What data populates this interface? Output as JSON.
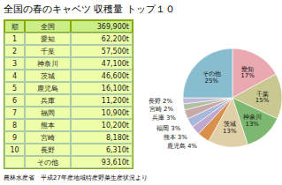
{
  "chart_data": {
    "type": "pie",
    "title": "全国の春のキャベツ  収穫量  トップ１０",
    "categories": [
      "愛知",
      "千葉",
      "神奈川",
      "茨城",
      "鹿児島",
      "熊本",
      "福岡",
      "兵庫",
      "宮崎",
      "長野",
      "その他"
    ],
    "values": [
      17,
      15,
      13,
      13,
      4,
      3,
      3,
      3,
      2,
      2,
      25
    ],
    "value_labels": [
      "17%",
      "15%",
      "13%",
      "13%",
      "4%",
      "3%",
      "3%",
      "3%",
      "2%",
      "2%",
      "25%"
    ],
    "colors": [
      "#EAA8B0",
      "#C8C890",
      "#7DB870",
      "#E0D0A8",
      "#D8904A",
      "#C0A8D0",
      "#A8B8D8",
      "#C8A8A8",
      "#B0C0A0",
      "#C0B8D8",
      "#88BCCF"
    ],
    "data_labels": true,
    "annotations": [
      "農林水産省　平成27年産地域特産野菜生産状況より"
    ],
    "table": {
      "header": [
        "順",
        "全国",
        "369,900t"
      ],
      "rows": [
        [
          "1",
          "愛知",
          "62,200t"
        ],
        [
          "2",
          "千葉",
          "57,500t"
        ],
        [
          "3",
          "神奈川",
          "47,100t"
        ],
        [
          "4",
          "茨城",
          "46,600t"
        ],
        [
          "5",
          "鹿児島",
          "16,100t"
        ],
        [
          "6",
          "兵庫",
          "11,200t"
        ],
        [
          "7",
          "福岡",
          "10,900t"
        ],
        [
          "8",
          "熊本",
          "10,200t"
        ],
        [
          "9",
          "宮崎",
          "8,180t"
        ],
        [
          "10",
          "長野",
          "6,310t"
        ],
        [
          "",
          "その他",
          "93,610t"
        ]
      ],
      "header_color": "#CCEE88",
      "color": "#EEFFAA",
      "border_color": "#88AA00",
      "inner_border_color": "#AACCAA"
    }
  }
}
